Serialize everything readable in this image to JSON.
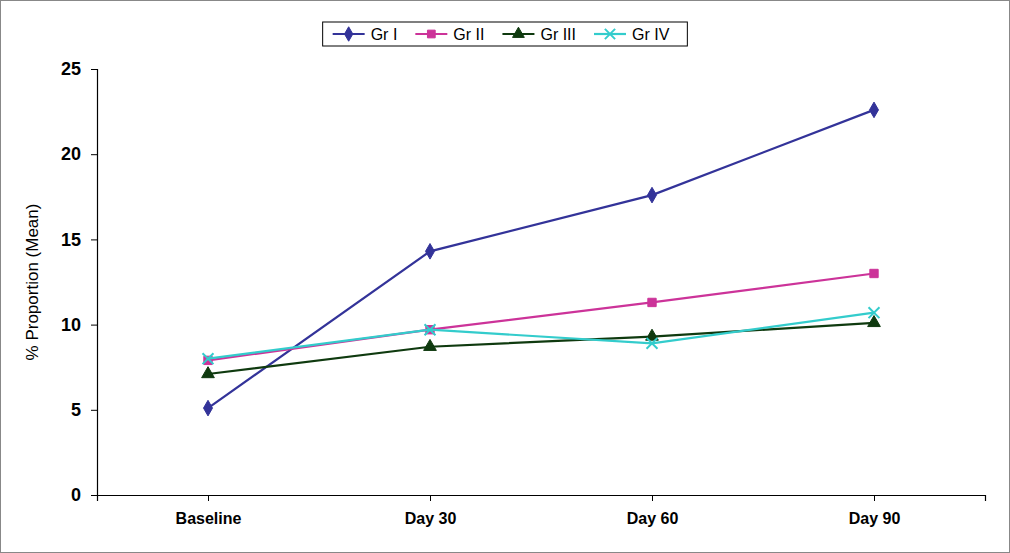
{
  "chart_data": {
    "type": "line",
    "y_label": "% Proportion (Mean)",
    "categories": [
      "Baseline",
      "Day 30",
      "Day 60",
      "Day 90"
    ],
    "series": [
      {
        "name": "Gr I",
        "color": "#333399",
        "marker": "diamond",
        "values": [
          5.1,
          14.3,
          17.6,
          22.6
        ]
      },
      {
        "name": "Gr II",
        "color": "#cc3399",
        "marker": "square",
        "values": [
          7.9,
          9.7,
          11.3,
          13.0
        ]
      },
      {
        "name": "Gr III",
        "color": "#0f3a0f",
        "marker": "triangle",
        "values": [
          7.1,
          8.7,
          9.3,
          10.1
        ]
      },
      {
        "name": "Gr IV",
        "color": "#33cccc",
        "marker": "x",
        "values": [
          8.0,
          9.7,
          8.9,
          10.7
        ]
      }
    ],
    "ylim": [
      0,
      25
    ],
    "yticks": [
      0,
      5,
      10,
      15,
      20,
      25
    ],
    "grid": false,
    "legend": "top"
  }
}
